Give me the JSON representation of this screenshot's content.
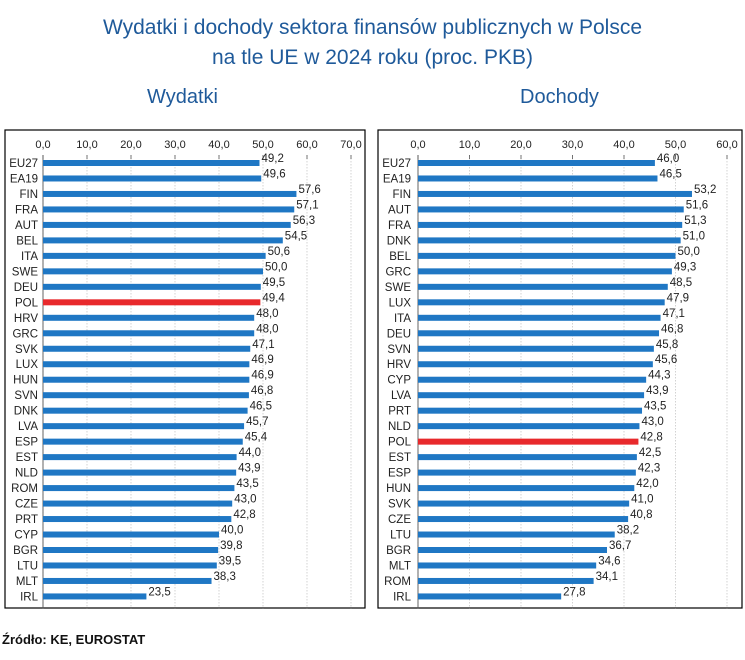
{
  "title_line1": "Wydatki i dochody sektora finansów publicznych w Polsce",
  "title_line2": "na tle UE w 2024 roku (proc. PKB)",
  "source": "Źródło: KE, EUROSTAT",
  "colors": {
    "bar": "#1f77c4",
    "highlight": "#e8292c",
    "title": "#1f5a9a"
  },
  "chart_data": [
    {
      "type": "bar",
      "orientation": "horizontal",
      "title": "Wydatki",
      "xlim": [
        0,
        70
      ],
      "xticks": [
        "0,0",
        "10,0",
        "20,0",
        "30,0",
        "40,0",
        "50,0",
        "60,0",
        "70,0"
      ],
      "grid": true,
      "highlight": "POL",
      "categories": [
        "EU27",
        "EA19",
        "FIN",
        "FRA",
        "AUT",
        "BEL",
        "ITA",
        "SWE",
        "DEU",
        "POL",
        "HRV",
        "GRC",
        "SVK",
        "LUX",
        "HUN",
        "SVN",
        "DNK",
        "LVA",
        "ESP",
        "EST",
        "NLD",
        "ROM",
        "CZE",
        "PRT",
        "CYP",
        "BGR",
        "LTU",
        "MLT",
        "IRL"
      ],
      "values": [
        49.2,
        49.6,
        57.6,
        57.1,
        56.3,
        54.5,
        50.6,
        50.0,
        49.5,
        49.4,
        48.0,
        48.0,
        47.1,
        46.9,
        46.9,
        46.8,
        46.5,
        45.7,
        45.4,
        44.0,
        43.9,
        43.5,
        43.0,
        42.8,
        40.0,
        39.8,
        39.5,
        38.3,
        23.5
      ],
      "labels": [
        "49,2",
        "49,6",
        "57,6",
        "57,1",
        "56,3",
        "54,5",
        "50,6",
        "50,0",
        "49,5",
        "49,4",
        "48,0",
        "48,0",
        "47,1",
        "46,9",
        "46,9",
        "46,8",
        "46,5",
        "45,7",
        "45,4",
        "44,0",
        "43,9",
        "43,5",
        "43,0",
        "42,8",
        "40,0",
        "39,8",
        "39,5",
        "38,3",
        "23,5"
      ]
    },
    {
      "type": "bar",
      "orientation": "horizontal",
      "title": "Dochody",
      "xlim": [
        0,
        60
      ],
      "xticks": [
        "0,0",
        "10,0",
        "20,0",
        "30,0",
        "40,0",
        "50,0",
        "60,0"
      ],
      "grid": true,
      "highlight": "POL",
      "categories": [
        "EU27",
        "EA19",
        "FIN",
        "AUT",
        "FRA",
        "DNK",
        "BEL",
        "GRC",
        "SWE",
        "LUX",
        "ITA",
        "DEU",
        "SVN",
        "HRV",
        "CYP",
        "LVA",
        "PRT",
        "NLD",
        "POL",
        "EST",
        "ESP",
        "HUN",
        "SVK",
        "CZE",
        "LTU",
        "BGR",
        "MLT",
        "ROM",
        "IRL"
      ],
      "values": [
        46.0,
        46.5,
        53.2,
        51.6,
        51.3,
        51.0,
        50.0,
        49.3,
        48.5,
        47.9,
        47.1,
        46.8,
        45.8,
        45.6,
        44.3,
        43.9,
        43.5,
        43.0,
        42.8,
        42.5,
        42.3,
        42.0,
        41.0,
        40.8,
        38.2,
        36.7,
        34.6,
        34.1,
        27.8
      ],
      "labels": [
        "46,0",
        "46,5",
        "53,2",
        "51,6",
        "51,3",
        "51,0",
        "50,0",
        "49,3",
        "48,5",
        "47,9",
        "47,1",
        "46,8",
        "45,8",
        "45,6",
        "44,3",
        "43,9",
        "43,5",
        "43,0",
        "42,8",
        "42,5",
        "42,3",
        "42,0",
        "41,0",
        "40,8",
        "38,2",
        "36,7",
        "34,6",
        "34,1",
        "27,8"
      ]
    }
  ]
}
